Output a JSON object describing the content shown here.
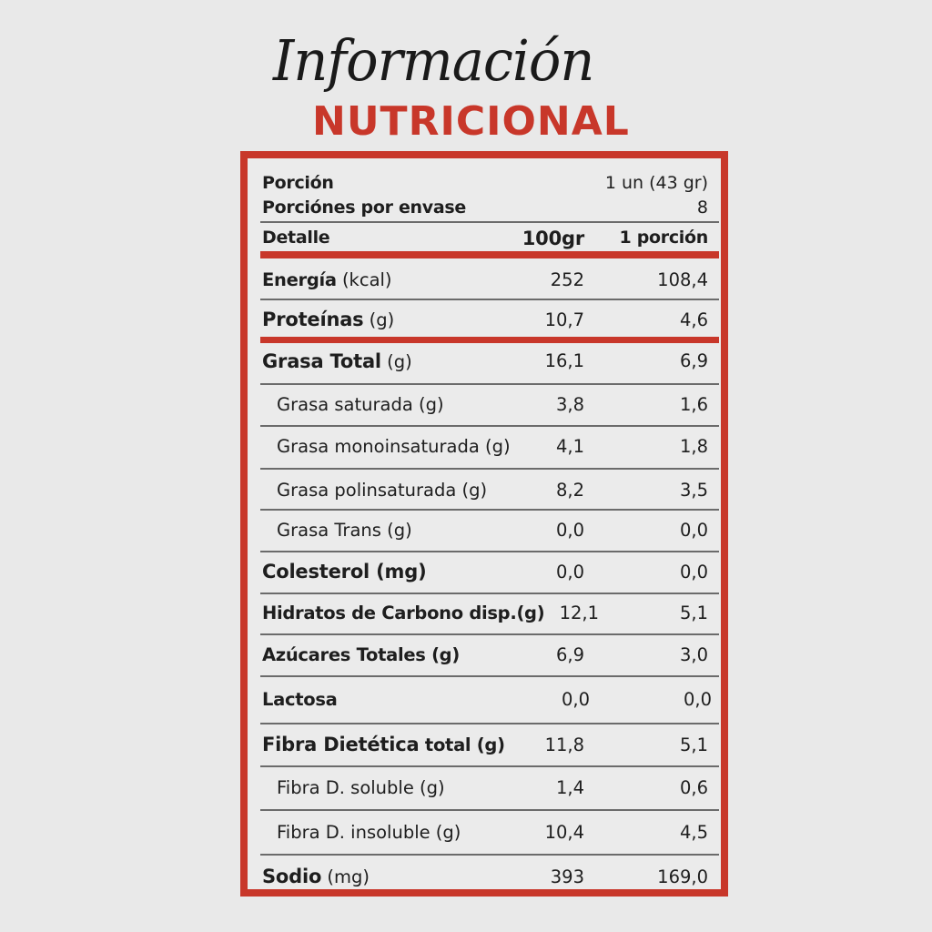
{
  "title": {
    "script": "Información",
    "main": "NUTRICIONAL"
  },
  "colors": {
    "accent": "#c8372a",
    "background": "#e9e9e9",
    "text": "#1e1e1e"
  },
  "serving": {
    "portion_label": "Porción",
    "portion_value": "1 un (43 gr)",
    "per_pack_label": "Porciónes por envase",
    "per_pack_value": "8"
  },
  "columns": {
    "detail": "Detalle",
    "per100": "100gr",
    "per_portion": "1 porción"
  },
  "rows": [
    {
      "main": "Energía",
      "suffix": " (kcal)",
      "style": "semi",
      "v100": "252",
      "vpor": "108,4"
    },
    {
      "main": "Proteínas",
      "suffix": " (g)",
      "style": "heavy",
      "v100": "10,7",
      "vpor": "4,6"
    },
    {
      "main": "Grasa Total",
      "suffix": " (g)",
      "style": "heavy",
      "v100": "16,1",
      "vpor": "6,9"
    },
    {
      "main": "Grasa saturada (g)",
      "suffix": "",
      "style": "indent",
      "v100": "3,8",
      "vpor": "1,6"
    },
    {
      "main": "Grasa monoinsaturada (g)",
      "suffix": "",
      "style": "indent",
      "v100": "4,1",
      "vpor": "1,8"
    },
    {
      "main": "Grasa polinsaturada (g)",
      "suffix": "",
      "style": "indent",
      "v100": "8,2",
      "vpor": "3,5"
    },
    {
      "main": "Grasa Trans (g)",
      "suffix": "",
      "style": "indent",
      "v100": "0,0",
      "vpor": "0,0"
    },
    {
      "main": "Colesterol (mg)",
      "suffix": "",
      "style": "heavy",
      "v100": "0,0",
      "vpor": "0,0"
    },
    {
      "main": "Hidratos de Carbono disp.(g)",
      "suffix": "",
      "style": "semi",
      "v100": "12,1",
      "vpor": "5,1"
    },
    {
      "main": "Azúcares Totales (g)",
      "suffix": "",
      "style": "semi",
      "v100": "6,9",
      "vpor": "3,0"
    },
    {
      "main": "Lactosa",
      "suffix": "",
      "style": "semi",
      "v100": "0,0",
      "vpor": "0,0"
    },
    {
      "main": "Fibra Dietética",
      "suffix": " total (g)",
      "style": "heavy-semi",
      "v100": "11,8",
      "vpor": "5,1"
    },
    {
      "main": "Fibra D. soluble (g)",
      "suffix": "",
      "style": "indent",
      "v100": "1,4",
      "vpor": "0,6"
    },
    {
      "main": "Fibra D. insoluble (g)",
      "suffix": "",
      "style": "indent",
      "v100": "10,4",
      "vpor": "4,5"
    },
    {
      "main": "Sodio",
      "suffix": " (mg)",
      "style": "heavy",
      "v100": "393",
      "vpor": "169,0"
    }
  ]
}
